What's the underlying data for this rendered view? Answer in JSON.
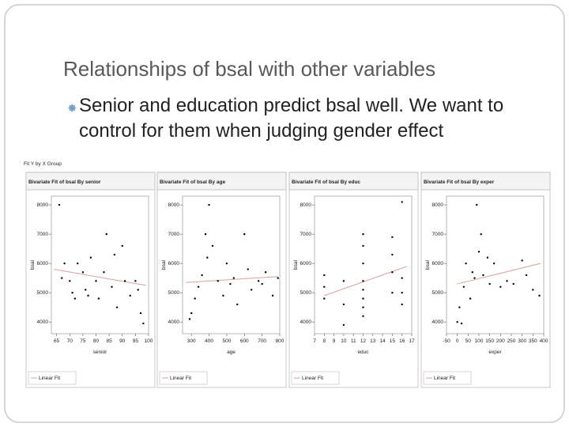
{
  "title": "Relationships of bsal with other variables",
  "bullet": "Senior and education predict bsal well.  We want to control for them when judging gender effect",
  "window_title": "Fit Y by X Group",
  "chart_data": [
    {
      "type": "scatter",
      "title": "Bivariate Fit of bsal By senior",
      "x_label": "senior",
      "y_label": "bsal",
      "xlim": [
        63,
        100
      ],
      "ylim": [
        3600,
        8300
      ],
      "xticks": [
        65,
        70,
        75,
        80,
        85,
        90,
        95,
        100
      ],
      "yticks": [
        4000,
        5000,
        6000,
        7000,
        8000
      ],
      "point_color": "#000000",
      "x": [
        66,
        67,
        68,
        70,
        71,
        72,
        73,
        75,
        76,
        77,
        78,
        80,
        81,
        83,
        84,
        86,
        87,
        88,
        90,
        91,
        93,
        95,
        96,
        97,
        98
      ],
      "y": [
        8000,
        5500,
        6000,
        5400,
        5000,
        4800,
        6000,
        5700,
        5100,
        4900,
        6200,
        5400,
        4800,
        5700,
        7000,
        5200,
        6300,
        4500,
        6600,
        5400,
        4900,
        5400,
        5100,
        4300,
        3950
      ],
      "fit": {
        "name": "Linear Fit",
        "color": "#d9a0a0",
        "x": [
          64,
          99
        ],
        "y": [
          5800,
          5250
        ]
      }
    },
    {
      "type": "scatter",
      "title": "Bivariate Fit of bsal By age",
      "x_label": "age",
      "y_label": "bsal",
      "xlim": [
        250,
        800
      ],
      "ylim": [
        3600,
        8300
      ],
      "xticks": [
        300,
        400,
        500,
        600,
        700,
        800
      ],
      "yticks": [
        4000,
        5000,
        6000,
        7000,
        8000
      ],
      "point_color": "#000000",
      "x": [
        290,
        300,
        320,
        340,
        360,
        380,
        390,
        400,
        420,
        450,
        480,
        500,
        520,
        540,
        560,
        600,
        620,
        640,
        680,
        700,
        720,
        760,
        790
      ],
      "y": [
        4100,
        4300,
        4800,
        5200,
        5600,
        7000,
        6200,
        8000,
        6600,
        5400,
        4900,
        6000,
        5300,
        5500,
        4600,
        7000,
        5800,
        5100,
        5400,
        5300,
        5700,
        4900,
        5500
      ],
      "fit": {
        "name": "Linear Fit",
        "color": "#d9a0a0",
        "x": [
          270,
          790
        ],
        "y": [
          5350,
          5550
        ]
      }
    },
    {
      "type": "scatter",
      "title": "Bivariate Fit of bsal By educ",
      "x_label": "educ",
      "y_label": "bsal",
      "xlim": [
        7,
        17
      ],
      "ylim": [
        3600,
        8300
      ],
      "xticks": [
        7,
        8,
        9,
        10,
        11,
        12,
        13,
        14,
        15,
        16,
        17
      ],
      "yticks": [
        4000,
        5000,
        6000,
        7000,
        8000
      ],
      "point_color": "#000000",
      "x": [
        8,
        8,
        8,
        10,
        10,
        10,
        12,
        12,
        12,
        12,
        12,
        12,
        12,
        12,
        15,
        15,
        15,
        15,
        16,
        16,
        16,
        16
      ],
      "y": [
        5600,
        5200,
        4800,
        4600,
        5400,
        3900,
        4200,
        4800,
        5400,
        6000,
        6600,
        7000,
        5100,
        4500,
        5000,
        5700,
        6300,
        6900,
        8100,
        5500,
        5000,
        4600
      ],
      "fit": {
        "name": "Linear Fit",
        "color": "#d9a0a0",
        "x": [
          8,
          16.5
        ],
        "y": [
          4900,
          5900
        ]
      }
    },
    {
      "type": "scatter",
      "title": "Bivariate Fit of bsal By exper",
      "x_label": "exper",
      "y_label": "bsal",
      "xlim": [
        -50,
        400
      ],
      "ylim": [
        3600,
        8300
      ],
      "xticks": [
        -50,
        0,
        50,
        100,
        150,
        200,
        250,
        300,
        350,
        400
      ],
      "yticks": [
        4000,
        5000,
        6000,
        7000,
        8000
      ],
      "point_color": "#000000",
      "x": [
        0,
        10,
        20,
        30,
        40,
        60,
        70,
        80,
        90,
        100,
        110,
        120,
        140,
        150,
        170,
        200,
        230,
        260,
        300,
        320,
        350,
        380
      ],
      "y": [
        4000,
        4500,
        3950,
        5200,
        6000,
        4800,
        5700,
        5500,
        8000,
        6400,
        7000,
        5600,
        6200,
        5300,
        6000,
        5200,
        5400,
        5300,
        6100,
        5600,
        5100,
        4900
      ],
      "fit": {
        "name": "Linear Fit",
        "color": "#d9a0a0",
        "x": [
          0,
          385
        ],
        "y": [
          5300,
          6000
        ]
      }
    }
  ]
}
